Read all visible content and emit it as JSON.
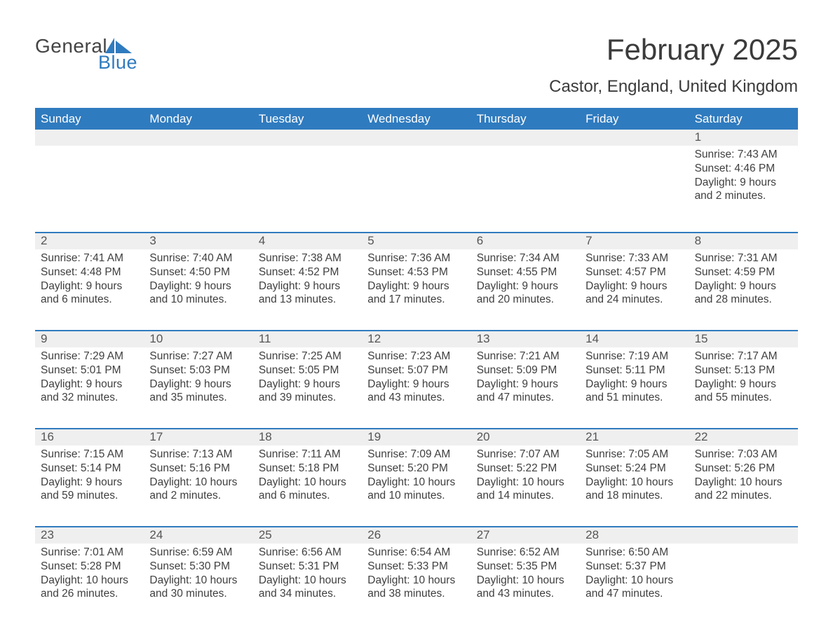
{
  "logo": {
    "text1": "General",
    "text2": "Blue"
  },
  "title": {
    "month": "February 2025",
    "location": "Castor, England, United Kingdom"
  },
  "dayHeaders": [
    "Sunday",
    "Monday",
    "Tuesday",
    "Wednesday",
    "Thursday",
    "Friday",
    "Saturday"
  ],
  "colors": {
    "accent": "#2f7bbf",
    "headerText": "#ffffff",
    "dayNumBg": "#efefef",
    "text": "#333333",
    "background": "#ffffff"
  },
  "layout": {
    "columns": 7,
    "widthPx": 1188,
    "heightPx": 918
  },
  "weeks": [
    [
      {},
      {},
      {},
      {},
      {},
      {},
      {
        "n": "1",
        "sunrise": "Sunrise: 7:43 AM",
        "sunset": "Sunset: 4:46 PM",
        "daylight": "Daylight: 9 hours and 2 minutes."
      }
    ],
    [
      {
        "n": "2",
        "sunrise": "Sunrise: 7:41 AM",
        "sunset": "Sunset: 4:48 PM",
        "daylight": "Daylight: 9 hours and 6 minutes."
      },
      {
        "n": "3",
        "sunrise": "Sunrise: 7:40 AM",
        "sunset": "Sunset: 4:50 PM",
        "daylight": "Daylight: 9 hours and 10 minutes."
      },
      {
        "n": "4",
        "sunrise": "Sunrise: 7:38 AM",
        "sunset": "Sunset: 4:52 PM",
        "daylight": "Daylight: 9 hours and 13 minutes."
      },
      {
        "n": "5",
        "sunrise": "Sunrise: 7:36 AM",
        "sunset": "Sunset: 4:53 PM",
        "daylight": "Daylight: 9 hours and 17 minutes."
      },
      {
        "n": "6",
        "sunrise": "Sunrise: 7:34 AM",
        "sunset": "Sunset: 4:55 PM",
        "daylight": "Daylight: 9 hours and 20 minutes."
      },
      {
        "n": "7",
        "sunrise": "Sunrise: 7:33 AM",
        "sunset": "Sunset: 4:57 PM",
        "daylight": "Daylight: 9 hours and 24 minutes."
      },
      {
        "n": "8",
        "sunrise": "Sunrise: 7:31 AM",
        "sunset": "Sunset: 4:59 PM",
        "daylight": "Daylight: 9 hours and 28 minutes."
      }
    ],
    [
      {
        "n": "9",
        "sunrise": "Sunrise: 7:29 AM",
        "sunset": "Sunset: 5:01 PM",
        "daylight": "Daylight: 9 hours and 32 minutes."
      },
      {
        "n": "10",
        "sunrise": "Sunrise: 7:27 AM",
        "sunset": "Sunset: 5:03 PM",
        "daylight": "Daylight: 9 hours and 35 minutes."
      },
      {
        "n": "11",
        "sunrise": "Sunrise: 7:25 AM",
        "sunset": "Sunset: 5:05 PM",
        "daylight": "Daylight: 9 hours and 39 minutes."
      },
      {
        "n": "12",
        "sunrise": "Sunrise: 7:23 AM",
        "sunset": "Sunset: 5:07 PM",
        "daylight": "Daylight: 9 hours and 43 minutes."
      },
      {
        "n": "13",
        "sunrise": "Sunrise: 7:21 AM",
        "sunset": "Sunset: 5:09 PM",
        "daylight": "Daylight: 9 hours and 47 minutes."
      },
      {
        "n": "14",
        "sunrise": "Sunrise: 7:19 AM",
        "sunset": "Sunset: 5:11 PM",
        "daylight": "Daylight: 9 hours and 51 minutes."
      },
      {
        "n": "15",
        "sunrise": "Sunrise: 7:17 AM",
        "sunset": "Sunset: 5:13 PM",
        "daylight": "Daylight: 9 hours and 55 minutes."
      }
    ],
    [
      {
        "n": "16",
        "sunrise": "Sunrise: 7:15 AM",
        "sunset": "Sunset: 5:14 PM",
        "daylight": "Daylight: 9 hours and 59 minutes."
      },
      {
        "n": "17",
        "sunrise": "Sunrise: 7:13 AM",
        "sunset": "Sunset: 5:16 PM",
        "daylight": "Daylight: 10 hours and 2 minutes."
      },
      {
        "n": "18",
        "sunrise": "Sunrise: 7:11 AM",
        "sunset": "Sunset: 5:18 PM",
        "daylight": "Daylight: 10 hours and 6 minutes."
      },
      {
        "n": "19",
        "sunrise": "Sunrise: 7:09 AM",
        "sunset": "Sunset: 5:20 PM",
        "daylight": "Daylight: 10 hours and 10 minutes."
      },
      {
        "n": "20",
        "sunrise": "Sunrise: 7:07 AM",
        "sunset": "Sunset: 5:22 PM",
        "daylight": "Daylight: 10 hours and 14 minutes."
      },
      {
        "n": "21",
        "sunrise": "Sunrise: 7:05 AM",
        "sunset": "Sunset: 5:24 PM",
        "daylight": "Daylight: 10 hours and 18 minutes."
      },
      {
        "n": "22",
        "sunrise": "Sunrise: 7:03 AM",
        "sunset": "Sunset: 5:26 PM",
        "daylight": "Daylight: 10 hours and 22 minutes."
      }
    ],
    [
      {
        "n": "23",
        "sunrise": "Sunrise: 7:01 AM",
        "sunset": "Sunset: 5:28 PM",
        "daylight": "Daylight: 10 hours and 26 minutes."
      },
      {
        "n": "24",
        "sunrise": "Sunrise: 6:59 AM",
        "sunset": "Sunset: 5:30 PM",
        "daylight": "Daylight: 10 hours and 30 minutes."
      },
      {
        "n": "25",
        "sunrise": "Sunrise: 6:56 AM",
        "sunset": "Sunset: 5:31 PM",
        "daylight": "Daylight: 10 hours and 34 minutes."
      },
      {
        "n": "26",
        "sunrise": "Sunrise: 6:54 AM",
        "sunset": "Sunset: 5:33 PM",
        "daylight": "Daylight: 10 hours and 38 minutes."
      },
      {
        "n": "27",
        "sunrise": "Sunrise: 6:52 AM",
        "sunset": "Sunset: 5:35 PM",
        "daylight": "Daylight: 10 hours and 43 minutes."
      },
      {
        "n": "28",
        "sunrise": "Sunrise: 6:50 AM",
        "sunset": "Sunset: 5:37 PM",
        "daylight": "Daylight: 10 hours and 47 minutes."
      },
      {}
    ]
  ]
}
